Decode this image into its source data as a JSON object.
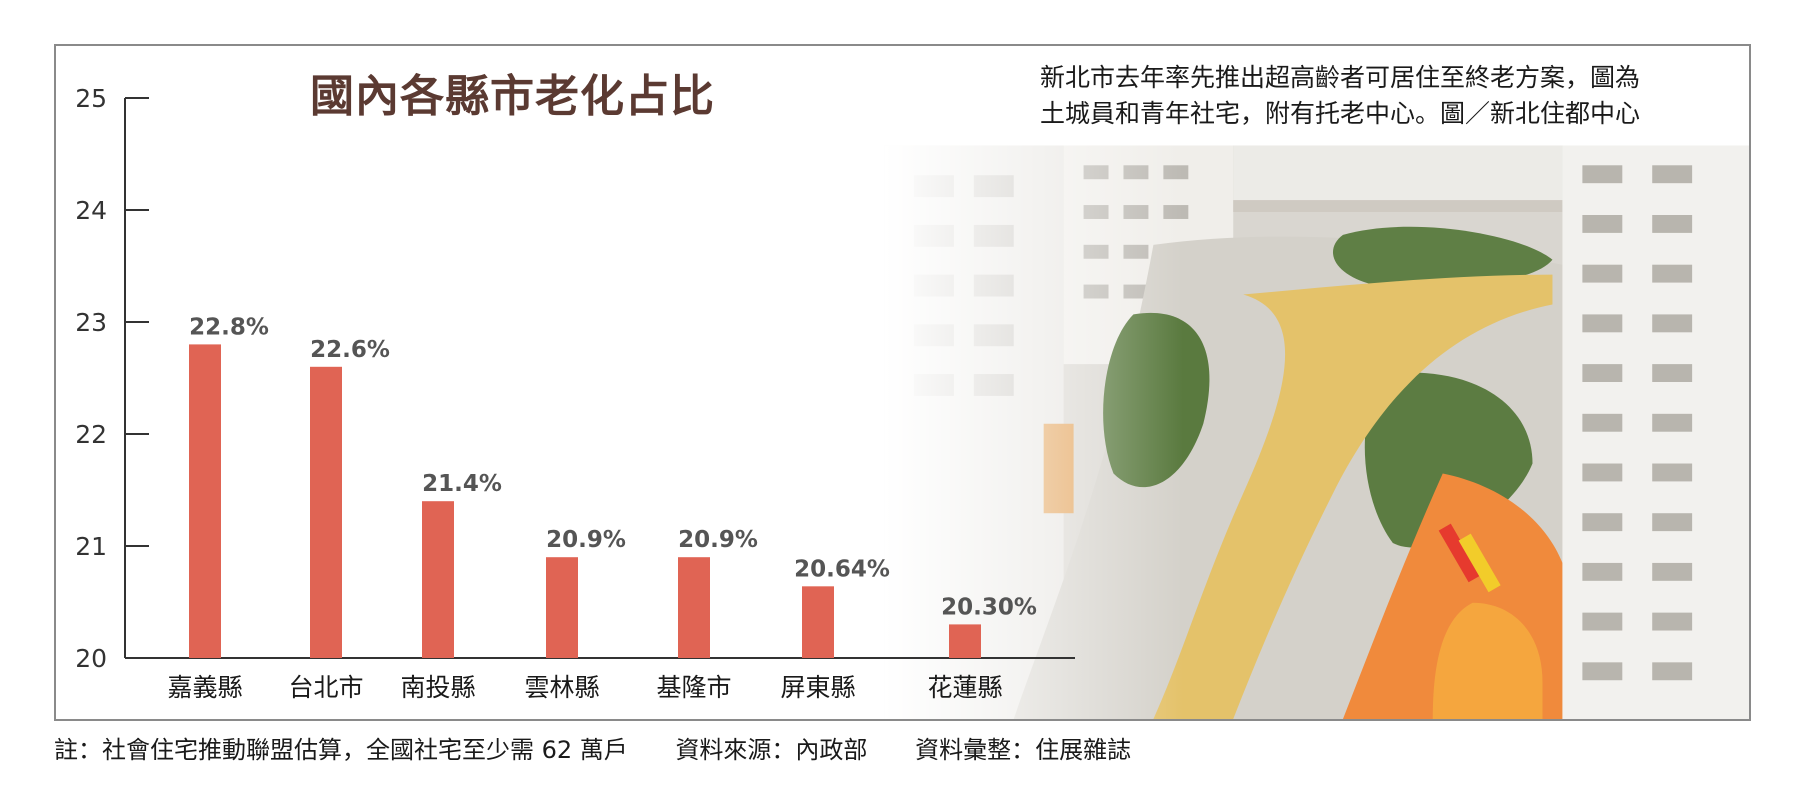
{
  "chart_data": {
    "type": "bar",
    "title": "國內各縣市老化占比",
    "categories": [
      "嘉義縣",
      "台北市",
      "南投縣",
      "雲林縣",
      "基隆市",
      "屏東縣",
      "花蓮縣"
    ],
    "values": [
      22.8,
      22.6,
      21.4,
      20.9,
      20.9,
      20.64,
      20.3
    ],
    "value_labels": [
      "22.8%",
      "22.6%",
      "21.4%",
      "20.9%",
      "20.9%",
      "20.64%",
      "20.30%"
    ],
    "yticks": [
      "20",
      "21",
      "22",
      "23",
      "24",
      "25"
    ],
    "ylim": [
      20,
      25
    ],
    "bar_color": "#e06454",
    "label_color": "#555555",
    "grid": false
  },
  "caption": {
    "line1": "新北市去年率先推出超高齡者可居住至終老方案，圖為",
    "line2": "土城員和青年社宅，附有托老中心。圖／新北住都中心"
  },
  "footnote": {
    "note": "註：社會住宅推動聯盟估算，全國社宅至少需 62 萬戶",
    "source": "資料來源：內政部",
    "compiled": "資料彙整：住展雜誌"
  },
  "photo": {
    "subject": "social-housing-courtyard-photo"
  }
}
